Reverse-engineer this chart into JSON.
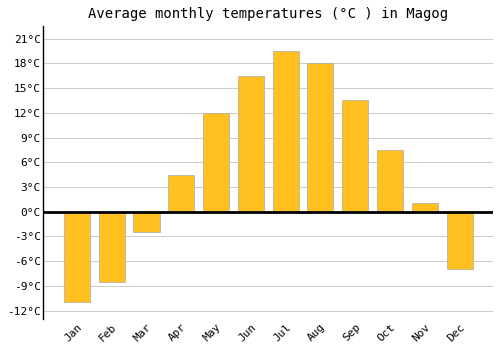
{
  "title": "Average monthly temperatures (°C ) in Magog",
  "months": [
    "Jan",
    "Feb",
    "Mar",
    "Apr",
    "May",
    "Jun",
    "Jul",
    "Aug",
    "Sep",
    "Oct",
    "Nov",
    "Dec"
  ],
  "values": [
    -11,
    -8.5,
    -2.5,
    4.5,
    12,
    16.5,
    19.5,
    18,
    13.5,
    7.5,
    1,
    -7
  ],
  "bar_color": "#FFC020",
  "bar_edge_color": "#aaaaaa",
  "background_color": "#ffffff",
  "grid_color": "#cccccc",
  "yticks": [
    -12,
    -9,
    -6,
    -3,
    0,
    3,
    6,
    9,
    12,
    15,
    18,
    21
  ],
  "ylim": [
    -13,
    22.5
  ],
  "zero_line_color": "#000000",
  "title_fontsize": 10,
  "tick_fontsize": 8,
  "font_family": "monospace",
  "bar_width": 0.75
}
